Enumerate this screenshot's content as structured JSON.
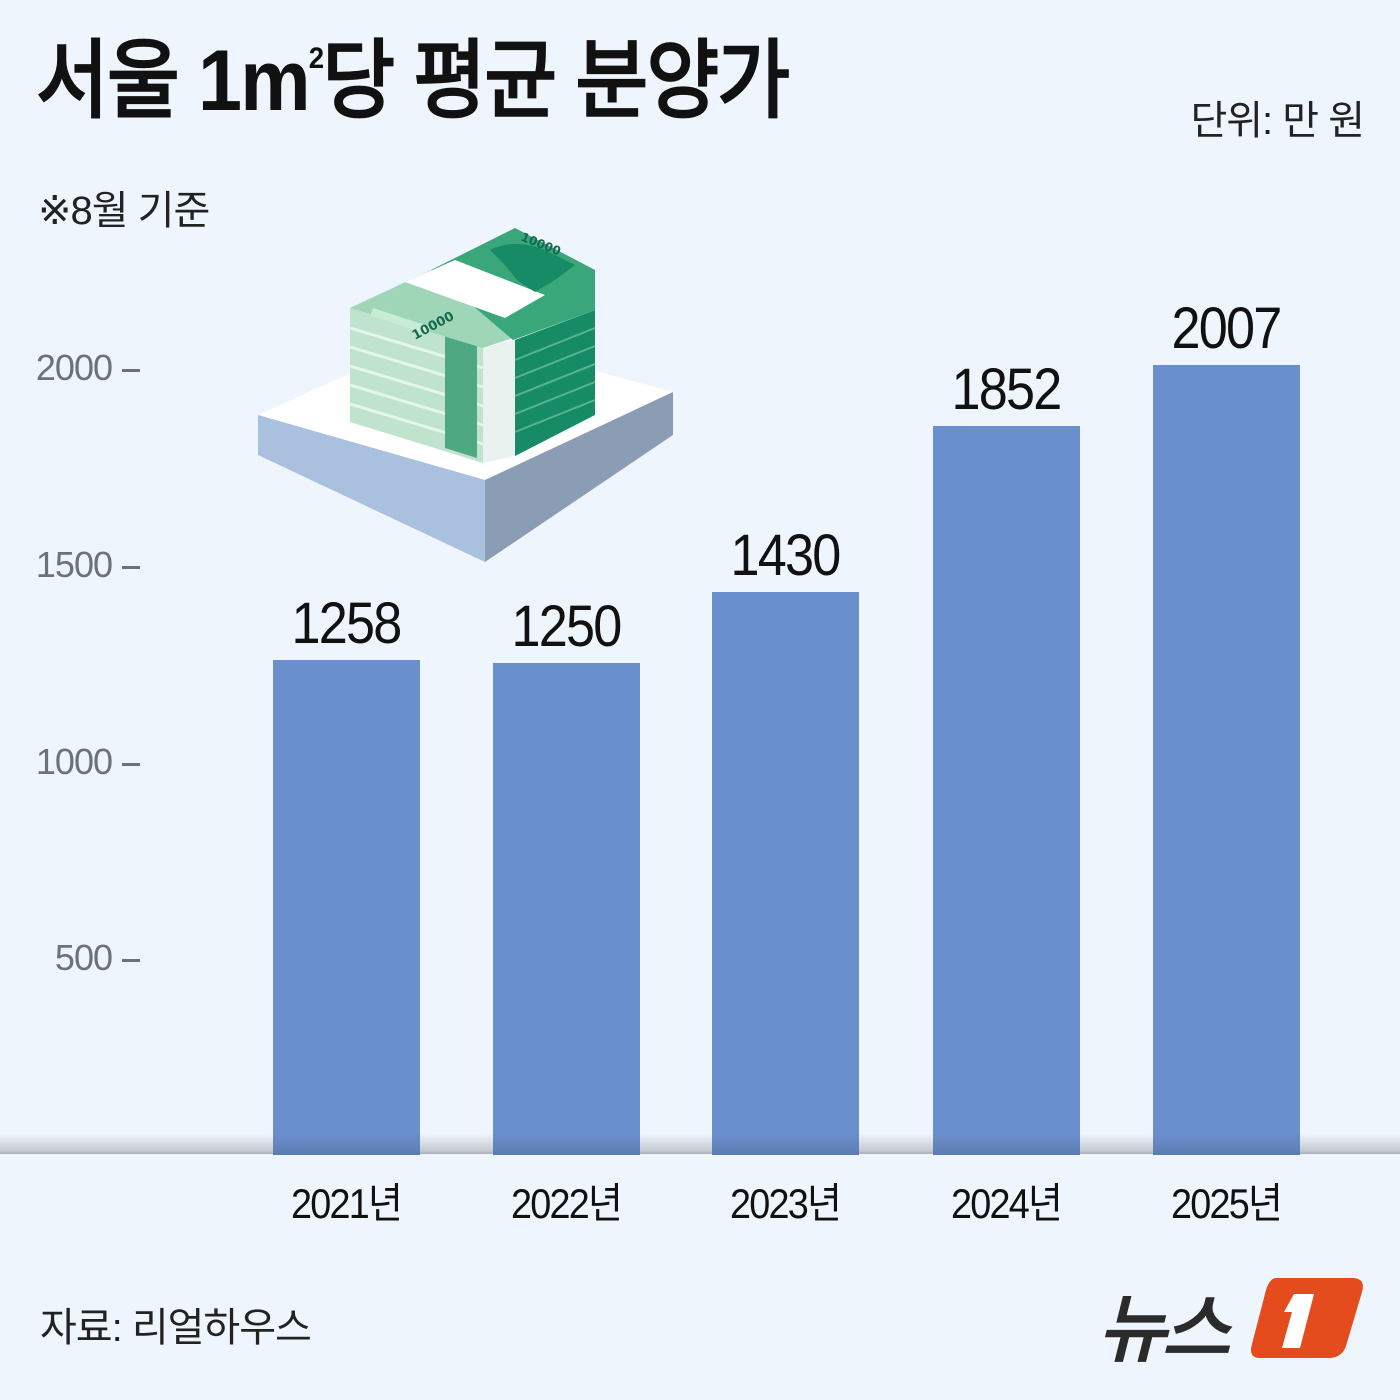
{
  "header": {
    "title_main": "서울 1㎡당 평균 분양가",
    "title_part1": "서울 1m",
    "title_sup": "2",
    "title_part2": "당 평균 분양가",
    "unit": "단위: 만 원",
    "note": "※8월 기준"
  },
  "footer": {
    "source": "자료: 리얼하우스",
    "logo_text": "뉴스",
    "logo_mark": "1"
  },
  "colors": {
    "background": "#eef5fd",
    "bar": "#6a8fcd",
    "logo_orange": "#e44c1e",
    "axis_text": "#6d7278"
  },
  "chart_data": {
    "type": "bar",
    "title": "서울 1㎡당 평균 분양가",
    "subtitle": "※8월 기준",
    "unit": "만 원",
    "categories": [
      "2021년",
      "2022년",
      "2023년",
      "2024년",
      "2025년"
    ],
    "values": [
      1258,
      1250,
      1430,
      1852,
      2007
    ],
    "value_labels": [
      "1258",
      "1250",
      "1430",
      "1852",
      "2007"
    ],
    "xlabel": "",
    "ylabel": "",
    "yticks": [
      "2000",
      "1500",
      "1000",
      "500"
    ],
    "ylim": [
      0,
      2000
    ],
    "grid": false,
    "legend": null,
    "source": "자료: 리얼하우스"
  }
}
